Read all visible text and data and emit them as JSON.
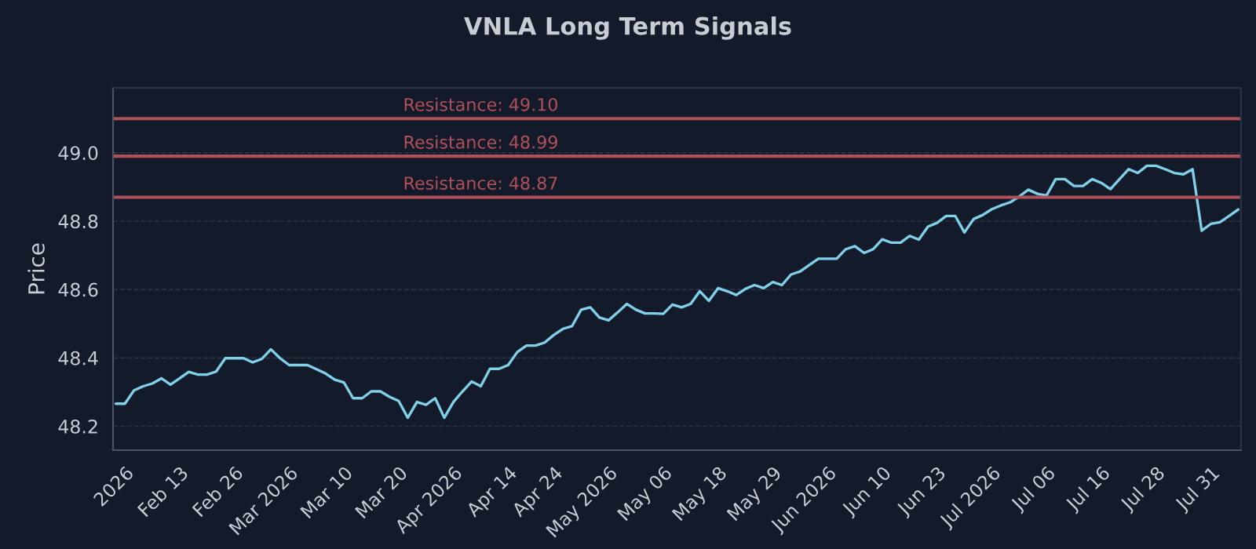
{
  "chart_data": {
    "type": "line",
    "title": "VNLA Long Term Signals",
    "ylabel": "Price",
    "categories": [
      null,
      "2026",
      null,
      null,
      null,
      null,
      null,
      "Feb 13",
      null,
      null,
      null,
      null,
      null,
      "Feb 26",
      null,
      null,
      null,
      null,
      null,
      "Mar 2026",
      null,
      null,
      null,
      null,
      null,
      "Mar 10",
      null,
      null,
      null,
      null,
      null,
      "Mar 20",
      null,
      null,
      null,
      null,
      null,
      "Apr 2026",
      null,
      null,
      null,
      null,
      null,
      "Apr 14",
      null,
      null,
      null,
      null,
      "Apr 24",
      null,
      null,
      null,
      null,
      null,
      "May 2026",
      null,
      null,
      null,
      null,
      null,
      "May 06",
      null,
      null,
      null,
      null,
      null,
      "May 18",
      null,
      null,
      null,
      null,
      null,
      "May 29",
      null,
      null,
      null,
      null,
      null,
      "Jun 2026",
      null,
      null,
      null,
      null,
      null,
      "Jun 10",
      null,
      null,
      null,
      null,
      null,
      "Jun 23",
      null,
      null,
      null,
      null,
      null,
      "Jul 2026",
      null,
      null,
      null,
      null,
      null,
      "Jul 06",
      null,
      null,
      null,
      null,
      null,
      "Jul 16",
      null,
      null,
      null,
      null,
      null,
      "Jul 28",
      null,
      null,
      null,
      null,
      null,
      "Jul 31",
      null,
      null,
      null
    ],
    "series": [
      {
        "color": "#7fd0e8",
        "values": [
          48.266,
          48.266,
          48.305,
          48.317,
          48.325,
          48.34,
          48.322,
          48.34,
          48.359,
          48.351,
          48.351,
          48.36,
          48.399,
          48.399,
          48.399,
          48.387,
          48.397,
          48.425,
          48.399,
          48.379,
          48.379,
          48.379,
          48.367,
          48.354,
          48.336,
          48.328,
          48.282,
          48.282,
          48.302,
          48.302,
          48.286,
          48.274,
          48.225,
          48.271,
          48.263,
          48.282,
          48.225,
          48.271,
          48.302,
          48.331,
          48.317,
          48.368,
          48.368,
          48.379,
          48.417,
          48.436,
          48.436,
          48.445,
          48.467,
          48.485,
          48.493,
          48.541,
          48.548,
          48.518,
          48.51,
          48.533,
          48.558,
          48.541,
          48.53,
          48.53,
          48.529,
          48.556,
          48.548,
          48.558,
          48.595,
          48.567,
          48.604,
          48.595,
          48.584,
          48.602,
          48.613,
          48.604,
          48.622,
          48.613,
          48.644,
          48.653,
          48.672,
          48.69,
          48.69,
          48.69,
          48.718,
          48.727,
          48.707,
          48.718,
          48.747,
          48.737,
          48.737,
          48.757,
          48.746,
          48.784,
          48.795,
          48.815,
          48.815,
          48.767,
          48.806,
          48.818,
          48.835,
          48.846,
          48.855,
          48.872,
          48.892,
          48.88,
          48.875,
          48.923,
          48.923,
          48.903,
          48.903,
          48.923,
          48.912,
          48.894,
          48.923,
          48.952,
          48.941,
          48.962,
          48.962,
          48.952,
          48.941,
          48.937,
          48.952,
          48.772,
          48.792,
          48.797,
          48.815,
          48.834
        ]
      }
    ],
    "ylim": [
      48.13,
      49.19
    ],
    "yticks": [
      {
        "value": 48.2,
        "label": "48.2"
      },
      {
        "value": 48.4,
        "label": "48.4"
      },
      {
        "value": 48.6,
        "label": "48.6"
      },
      {
        "value": 48.8,
        "label": "48.8"
      },
      {
        "value": 49.0,
        "label": "49.0"
      }
    ],
    "ref_lines": [
      {
        "axis": "y",
        "value": 49.1,
        "label": "Resistance: 49.10",
        "color": "#b0505a"
      },
      {
        "axis": "y",
        "value": 48.99,
        "label": "Resistance: 48.99",
        "color": "#b0505a"
      },
      {
        "axis": "y",
        "value": 48.87,
        "label": "Resistance: 48.87",
        "color": "#b0505a"
      }
    ],
    "grid": "y",
    "line_style": "solid",
    "marker": "none",
    "legend": false
  }
}
